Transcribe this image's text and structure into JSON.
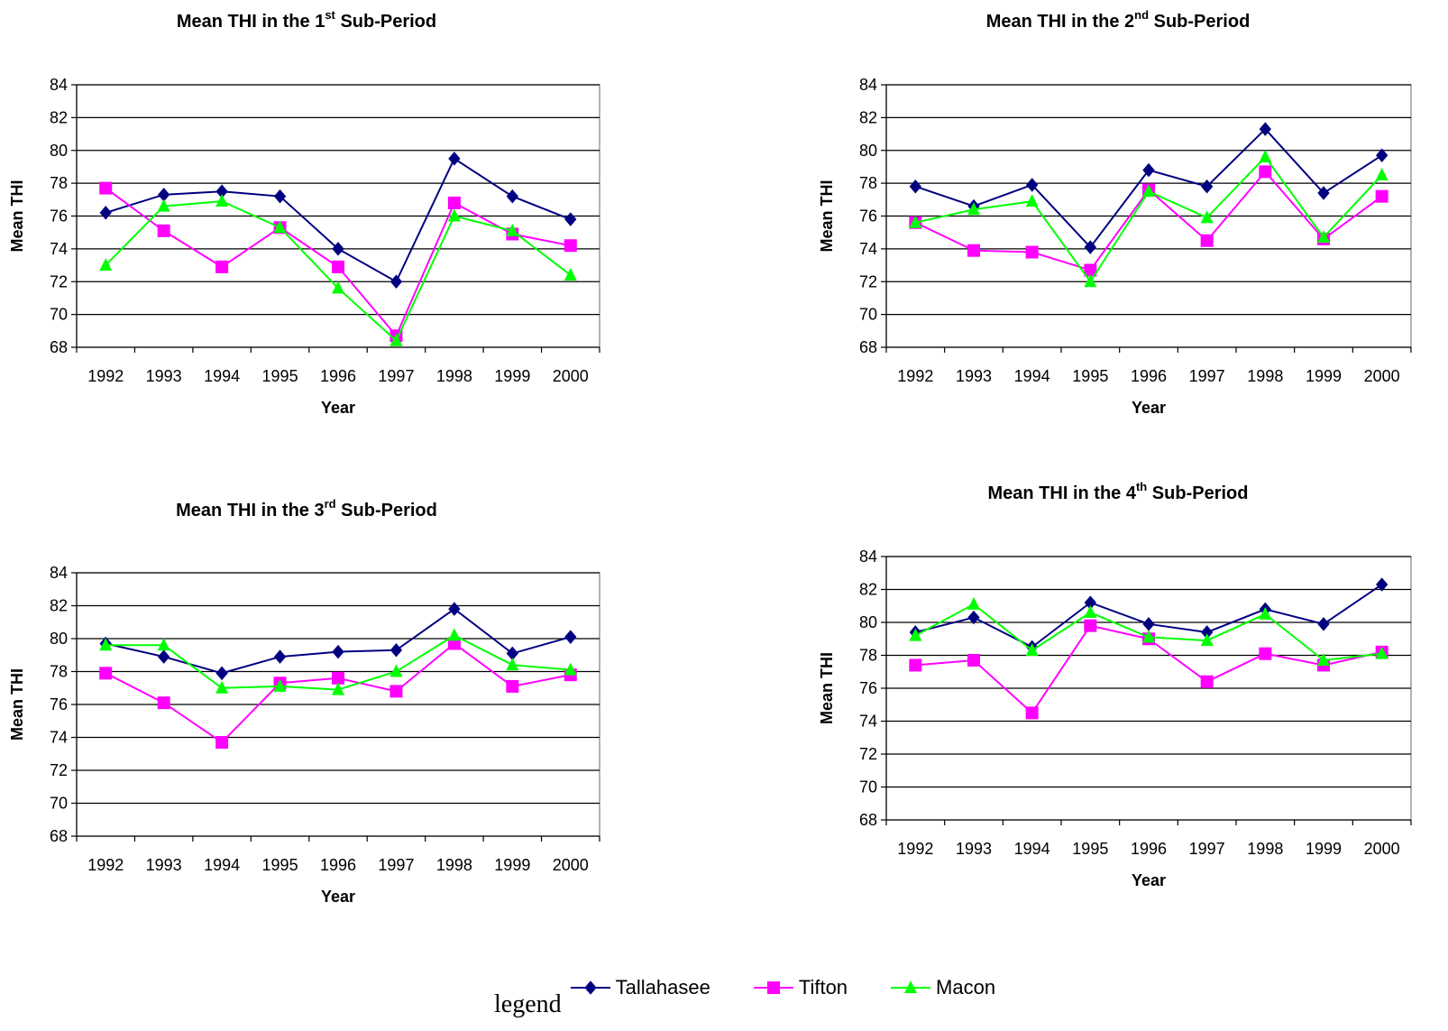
{
  "colors": {
    "Tallahasee": "#000080",
    "Tifton": "#FF00FF",
    "Macon": "#00FF00"
  },
  "legend": {
    "label": "legend",
    "entries": [
      {
        "name": "Tallahasee",
        "color": "#000080",
        "marker": "diamond"
      },
      {
        "name": "Tifton",
        "color": "#FF00FF",
        "marker": "square"
      },
      {
        "name": "Macon",
        "color": "#00FF00",
        "marker": "triangle"
      }
    ]
  },
  "chart_data": [
    {
      "type": "line",
      "title": {
        "pre": "Mean THI in the 1",
        "sup": "st",
        "post": " Sub-Period"
      },
      "xlabel": "Year",
      "ylabel": "Mean THI",
      "categories": [
        "1992",
        "1993",
        "1994",
        "1995",
        "1996",
        "1997",
        "1998",
        "1999",
        "2000"
      ],
      "ylim": [
        68,
        84
      ],
      "yticks": [
        68,
        70,
        72,
        74,
        76,
        78,
        80,
        82,
        84
      ],
      "grid": true,
      "series": [
        {
          "name": "Tallahasee",
          "values": [
            76.2,
            77.3,
            77.5,
            77.2,
            74.0,
            72.0,
            79.5,
            77.2,
            75.8
          ]
        },
        {
          "name": "Tifton",
          "values": [
            77.7,
            75.1,
            72.9,
            75.3,
            72.9,
            68.7,
            76.8,
            74.9,
            74.2
          ]
        },
        {
          "name": "Macon",
          "values": [
            73.0,
            76.6,
            76.9,
            75.3,
            71.6,
            68.4,
            76.0,
            75.1,
            72.4
          ]
        }
      ]
    },
    {
      "type": "line",
      "title": {
        "pre": "Mean THI in the 2",
        "sup": "nd",
        "post": " Sub-Period"
      },
      "xlabel": "Year",
      "ylabel": "Mean THI",
      "categories": [
        "1992",
        "1993",
        "1994",
        "1995",
        "1996",
        "1997",
        "1998",
        "1999",
        "2000"
      ],
      "ylim": [
        68,
        84
      ],
      "yticks": [
        68,
        70,
        72,
        74,
        76,
        78,
        80,
        82,
        84
      ],
      "grid": true,
      "series": [
        {
          "name": "Tallahasee",
          "values": [
            77.8,
            76.6,
            77.9,
            74.1,
            78.8,
            77.8,
            81.3,
            77.4,
            79.7
          ]
        },
        {
          "name": "Tifton",
          "values": [
            75.6,
            73.9,
            73.8,
            72.7,
            77.6,
            74.5,
            78.7,
            74.6,
            77.2
          ]
        },
        {
          "name": "Macon",
          "values": [
            75.6,
            76.4,
            76.9,
            72.0,
            77.5,
            75.9,
            79.6,
            74.7,
            78.5
          ]
        }
      ]
    },
    {
      "type": "line",
      "title": {
        "pre": "Mean THI in the 3",
        "sup": "rd",
        "post": " Sub-Period"
      },
      "xlabel": "Year",
      "ylabel": "Mean THI",
      "categories": [
        "1992",
        "1993",
        "1994",
        "1995",
        "1996",
        "1997",
        "1998",
        "1999",
        "2000"
      ],
      "ylim": [
        68,
        84
      ],
      "yticks": [
        68,
        70,
        72,
        74,
        76,
        78,
        80,
        82,
        84
      ],
      "grid": true,
      "series": [
        {
          "name": "Tallahasee",
          "values": [
            79.7,
            78.9,
            77.9,
            78.9,
            79.2,
            79.3,
            81.8,
            79.1,
            80.1
          ]
        },
        {
          "name": "Tifton",
          "values": [
            77.9,
            76.1,
            73.7,
            77.3,
            77.6,
            76.8,
            79.7,
            77.1,
            77.8
          ]
        },
        {
          "name": "Macon",
          "values": [
            79.6,
            79.6,
            77.0,
            77.1,
            76.9,
            78.0,
            80.2,
            78.4,
            78.1
          ]
        }
      ]
    },
    {
      "type": "line",
      "title": {
        "pre": "Mean THI in the 4",
        "sup": "th",
        "post": " Sub-Period"
      },
      "xlabel": "Year",
      "ylabel": "Mean THI",
      "categories": [
        "1992",
        "1993",
        "1994",
        "1995",
        "1996",
        "1997",
        "1998",
        "1999",
        "2000"
      ],
      "ylim": [
        68,
        84
      ],
      "yticks": [
        68,
        70,
        72,
        74,
        76,
        78,
        80,
        82,
        84
      ],
      "grid": true,
      "series": [
        {
          "name": "Tallahasee",
          "values": [
            79.4,
            80.3,
            78.5,
            81.2,
            79.9,
            79.4,
            80.8,
            79.9,
            82.3
          ]
        },
        {
          "name": "Tifton",
          "values": [
            77.4,
            77.7,
            74.5,
            79.8,
            79.0,
            76.4,
            78.1,
            77.4,
            78.2
          ]
        },
        {
          "name": "Macon",
          "values": [
            79.2,
            81.1,
            78.3,
            80.6,
            79.1,
            78.9,
            80.5,
            77.7,
            78.1
          ]
        }
      ]
    }
  ]
}
